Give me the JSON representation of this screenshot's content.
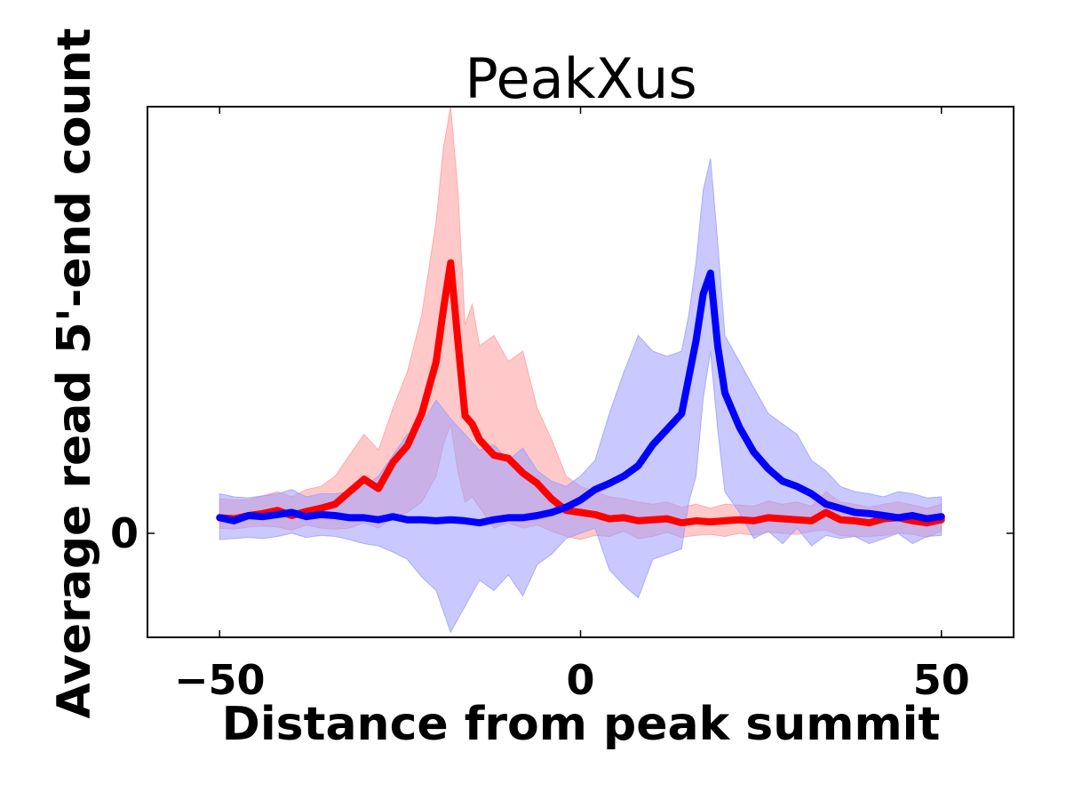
{
  "chart_data": {
    "type": "line",
    "title": "PeakXus",
    "xlabel": "Distance from peak summit",
    "ylabel": "Average read 5'-end count",
    "xlim": [
      -60,
      60
    ],
    "ylim": [
      -1.0,
      4.1
    ],
    "xticks": [
      -50,
      0,
      50
    ],
    "xtick_labels": [
      "−50",
      "0",
      "50"
    ],
    "yticks": [
      0
    ],
    "ytick_labels": [
      "0"
    ],
    "grid": false,
    "legend": "none",
    "series": [
      {
        "color": "#ff0000",
        "band_color": "#ff9c9c",
        "x": [
          -50,
          -48,
          -46,
          -44,
          -42,
          -40,
          -38,
          -36,
          -34,
          -32,
          -30,
          -28,
          -26,
          -24,
          -22,
          -20,
          -19,
          -18,
          -17,
          -16,
          -15,
          -14,
          -12,
          -10,
          -8,
          -6,
          -4,
          -2,
          0,
          2,
          4,
          6,
          8,
          10,
          12,
          14,
          16,
          18,
          20,
          22,
          24,
          26,
          28,
          30,
          32,
          34,
          36,
          38,
          40,
          42,
          44,
          46,
          48,
          50
        ],
        "values": [
          0.15,
          0.14,
          0.17,
          0.19,
          0.22,
          0.17,
          0.21,
          0.24,
          0.28,
          0.4,
          0.52,
          0.43,
          0.68,
          0.84,
          1.15,
          1.65,
          2.15,
          2.6,
          1.85,
          1.13,
          1.05,
          0.9,
          0.75,
          0.72,
          0.58,
          0.48,
          0.33,
          0.22,
          0.2,
          0.18,
          0.14,
          0.15,
          0.12,
          0.13,
          0.14,
          0.1,
          0.12,
          0.11,
          0.12,
          0.13,
          0.12,
          0.15,
          0.14,
          0.13,
          0.12,
          0.2,
          0.13,
          0.12,
          0.1,
          0.14,
          0.15,
          0.12,
          0.1,
          0.13
        ],
        "lower": [
          0.05,
          0.04,
          0.06,
          0.07,
          0.06,
          0.03,
          0.08,
          0.05,
          0.04,
          0.05,
          0.1,
          0.05,
          0.15,
          0.2,
          0.3,
          0.55,
          0.85,
          1.05,
          0.6,
          0.3,
          0.35,
          0.25,
          0.05,
          0.1,
          0.05,
          0.08,
          0.02,
          -0.03,
          -0.06,
          -0.02,
          -0.03,
          0.02,
          -0.05,
          -0.03,
          0.01,
          -0.04,
          -0.02,
          -0.01,
          -0.03,
          0.0,
          -0.02,
          0.01,
          0.0,
          -0.01,
          0.02,
          0.03,
          -0.02,
          -0.03,
          -0.03,
          -0.02,
          0.0,
          -0.01,
          -0.04,
          0.02
        ],
        "upper": [
          0.33,
          0.32,
          0.32,
          0.36,
          0.4,
          0.35,
          0.42,
          0.45,
          0.55,
          0.75,
          0.95,
          0.8,
          1.2,
          1.55,
          2.1,
          3.0,
          3.7,
          4.1,
          3.3,
          2.0,
          2.2,
          1.8,
          1.9,
          1.65,
          1.75,
          1.2,
          0.9,
          0.55,
          0.45,
          0.4,
          0.35,
          0.33,
          0.3,
          0.28,
          0.3,
          0.25,
          0.28,
          0.24,
          0.28,
          0.27,
          0.26,
          0.31,
          0.28,
          0.3,
          0.26,
          0.4,
          0.3,
          0.28,
          0.25,
          0.28,
          0.3,
          0.27,
          0.24,
          0.28
        ]
      },
      {
        "color": "#0000ff",
        "band_color": "#9c9cff",
        "x": [
          -50,
          -48,
          -46,
          -44,
          -42,
          -40,
          -38,
          -36,
          -34,
          -32,
          -30,
          -28,
          -26,
          -24,
          -22,
          -20,
          -18,
          -16,
          -14,
          -12,
          -10,
          -8,
          -6,
          -4,
          -2,
          0,
          2,
          4,
          6,
          8,
          10,
          12,
          14,
          15,
          16,
          17,
          18,
          19,
          20,
          22,
          24,
          26,
          28,
          30,
          32,
          34,
          36,
          38,
          40,
          42,
          44,
          46,
          48,
          50
        ],
        "values": [
          0.15,
          0.12,
          0.17,
          0.16,
          0.18,
          0.2,
          0.16,
          0.18,
          0.17,
          0.15,
          0.15,
          0.13,
          0.16,
          0.13,
          0.13,
          0.12,
          0.13,
          0.12,
          0.1,
          0.13,
          0.15,
          0.15,
          0.17,
          0.2,
          0.25,
          0.32,
          0.42,
          0.48,
          0.55,
          0.65,
          0.85,
          1.0,
          1.15,
          1.5,
          1.85,
          2.3,
          2.5,
          1.8,
          1.35,
          1.02,
          0.78,
          0.62,
          0.5,
          0.45,
          0.38,
          0.28,
          0.24,
          0.2,
          0.19,
          0.17,
          0.15,
          0.17,
          0.14,
          0.16
        ],
        "lower": [
          -0.06,
          -0.05,
          -0.04,
          -0.05,
          -0.03,
          0.0,
          -0.04,
          -0.02,
          -0.03,
          -0.06,
          -0.1,
          -0.12,
          -0.18,
          -0.25,
          -0.42,
          -0.55,
          -0.95,
          -0.7,
          -0.45,
          -0.55,
          -0.4,
          -0.6,
          -0.3,
          -0.2,
          -0.05,
          0.0,
          0.05,
          -0.35,
          -0.5,
          -0.62,
          -0.25,
          -0.2,
          -0.15,
          0.3,
          0.55,
          1.3,
          1.75,
          1.0,
          0.4,
          0.2,
          -0.05,
          0.02,
          -0.1,
          0.05,
          -0.12,
          -0.02,
          -0.05,
          -0.03,
          -0.1,
          -0.05,
          0.0,
          -0.1,
          -0.03,
          -0.02
        ],
        "upper": [
          0.38,
          0.35,
          0.34,
          0.36,
          0.38,
          0.42,
          0.35,
          0.38,
          0.38,
          0.4,
          0.45,
          0.55,
          0.75,
          0.95,
          1.05,
          1.28,
          1.1,
          0.95,
          0.8,
          0.85,
          0.7,
          0.82,
          0.6,
          0.5,
          0.45,
          0.55,
          0.7,
          1.15,
          1.55,
          1.9,
          1.75,
          1.7,
          1.75,
          2.1,
          2.6,
          3.3,
          3.6,
          2.8,
          1.9,
          1.65,
          1.4,
          1.15,
          1.05,
          0.95,
          0.7,
          0.6,
          0.45,
          0.4,
          0.38,
          0.35,
          0.4,
          0.38,
          0.34,
          0.35
        ]
      }
    ]
  }
}
